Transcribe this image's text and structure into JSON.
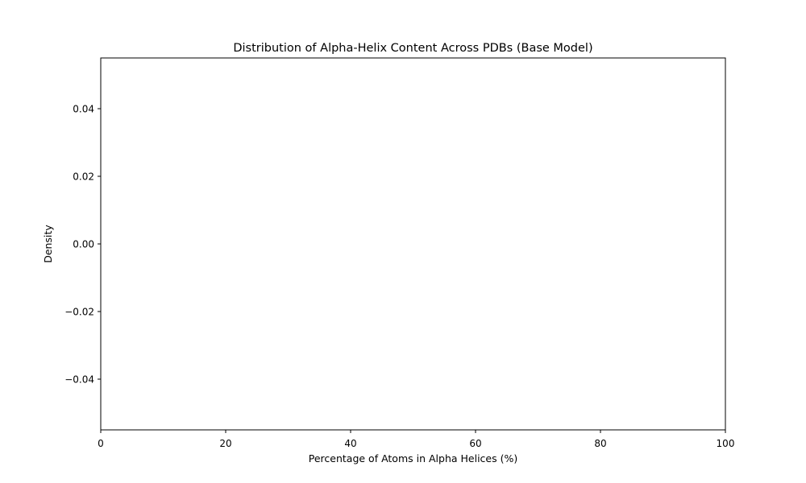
{
  "chart_data": {
    "type": "histogram",
    "title": "Distribution of Alpha-Helix Content Across PDBs (Base Model)",
    "xlabel": "Percentage of Atoms in Alpha Helices (%)",
    "ylabel": "Density",
    "xlim": [
      0,
      100
    ],
    "ylim": [
      -0.055,
      0.055
    ],
    "x_ticks": [
      0,
      20,
      40,
      60,
      80,
      100
    ],
    "x_tick_labels": [
      "0",
      "20",
      "40",
      "60",
      "80",
      "100"
    ],
    "y_ticks": [
      -0.04,
      -0.02,
      0.0,
      0.02,
      0.04
    ],
    "y_tick_labels": [
      "−0.04",
      "−0.02",
      "0.00",
      "0.02",
      "0.04"
    ],
    "series": [],
    "grid": false,
    "legend": "none"
  }
}
